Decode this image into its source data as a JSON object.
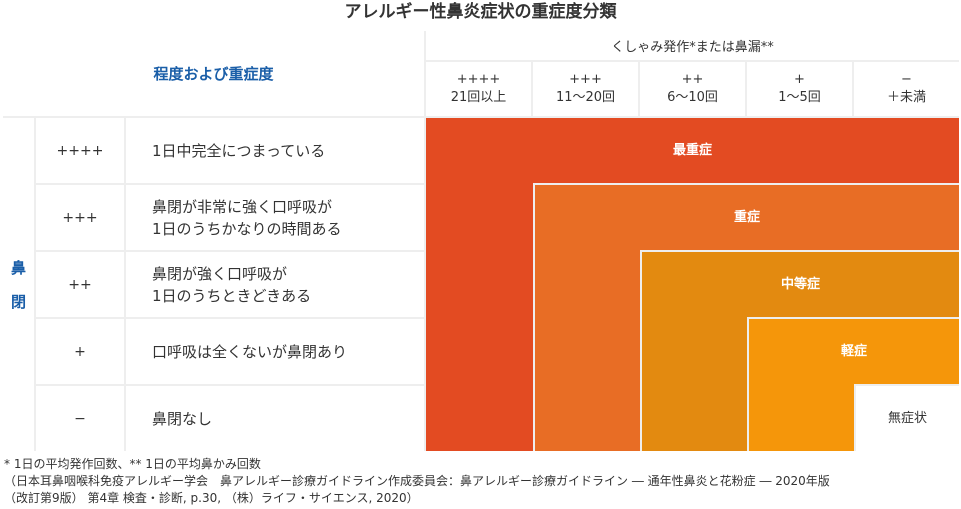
{
  "title": "アレルギー性鼻炎症状の重症度分類",
  "header": {
    "degree_label": "程度および重症度",
    "sneeze_label": "くしゃみ発作*または鼻漏**",
    "columns": [
      {
        "symbol": "++++",
        "range": "21回以上"
      },
      {
        "symbol": "+++",
        "range": "11〜20回"
      },
      {
        "symbol": "++",
        "range": "6〜10回"
      },
      {
        "symbol": "+",
        "range": "1〜5回"
      },
      {
        "symbol": "−",
        "range": "＋未満"
      }
    ]
  },
  "nose_label_chars": [
    "鼻",
    "閉"
  ],
  "rows": [
    {
      "symbol": "++++",
      "line1": "1日中完全につまっている",
      "line2": ""
    },
    {
      "symbol": "+++",
      "line1": "鼻閉が非常に強く口呼吸が",
      "line2": "1日のうちかなりの時間ある"
    },
    {
      "symbol": "++",
      "line1": "鼻閉が強く口呼吸が",
      "line2": "1日のうちときどきある"
    },
    {
      "symbol": "+",
      "line1": "口呼吸は全くないが鼻閉あり",
      "line2": ""
    },
    {
      "symbol": "−",
      "line1": "鼻閉なし",
      "line2": ""
    }
  ],
  "severity": [
    {
      "label": "最重症",
      "color": "#e34b22"
    },
    {
      "label": "重症",
      "color": "#e86d25"
    },
    {
      "label": "中等症",
      "color": "#e38a10"
    },
    {
      "label": "軽症",
      "color": "#f5960a"
    },
    {
      "label": "無症状",
      "color": "#ffffff",
      "text_color": "#333333"
    }
  ],
  "footnotes": [
    "* 1日の平均発作回数、** 1日の平均鼻かみ回数",
    "（日本耳鼻咽喉科免疫アレルギー学会　鼻アレルギー診療ガイドライン作成委員会：鼻アレルギー診療ガイドライン ― 通年性鼻炎と花粉症 ― 2020年版",
    "（改訂第9版） 第4章 検査・診断, p.30, （株）ライフ・サイエンス, 2020）"
  ]
}
